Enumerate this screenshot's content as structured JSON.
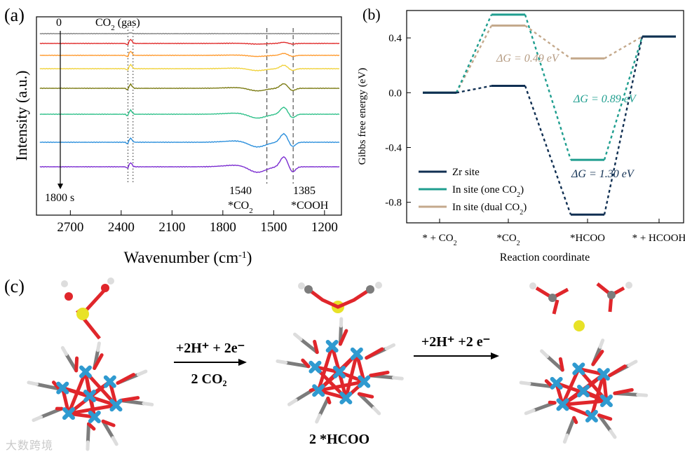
{
  "panel_a": {
    "label": "(a)",
    "xlabel": "Wavenumber (cm",
    "xlabel_sup": "-1",
    "xlabel_end": ")",
    "ylabel": "Intensity (a.u.)",
    "time_start": "0",
    "time_end": "1800 s",
    "gas_label": "CO",
    "gas_sub": "2",
    "gas_suffix": " (gas)",
    "ann_1540": "1540",
    "ann_1540_species": "*CO",
    "ann_1540_sub": "2",
    "ann_1385": "1385",
    "ann_1385_species": "*COOH",
    "colors": [
      "#808080",
      "#e02b2b",
      "#ff9a2e",
      "#f0d23c",
      "#7a7a12",
      "#2ec089",
      "#2b8fdc",
      "#7a2bd0"
    ]
  },
  "panel_b": {
    "label": "(b)",
    "dg_dual": "ΔG = 0.49 eV",
    "dg_one": "ΔG = 0.89 eV",
    "dg_zr": "ΔG = 1.30 eV"
  },
  "panel_c": {
    "label": "(c)",
    "arrow1_top": "+2H⁺ + 2e⁻",
    "arrow1_bottom": "2 CO₂",
    "arrow2_top": "+2H⁺ +2 e⁻",
    "middle_caption": "2 *HCOO"
  },
  "watermark": "大数跨境",
  "chart_data": [
    {
      "type": "line",
      "panel": "a",
      "title": "",
      "xlabel": "Wavenumber (cm-1)",
      "ylabel": "Intensity (a.u.)",
      "x_reversed": true,
      "xlim": [
        2900,
        1100
      ],
      "x_ticks": [
        2700,
        2400,
        2100,
        1800,
        1500,
        1200
      ],
      "time_range_s": [
        0,
        1800
      ],
      "spectra_count": 8,
      "reference_lines_cm-1": [
        2360,
        2330,
        1540,
        1385
      ],
      "grid": false
    },
    {
      "type": "line",
      "panel": "b",
      "title": "",
      "xlabel": "Reaction coordinate",
      "ylabel": "Gibbs free energy (eV)",
      "categories": [
        "* + CO2",
        "*CO2",
        "*HCOO",
        "* + HCOOH"
      ],
      "ylim": [
        -0.95,
        0.6
      ],
      "y_ticks": [
        0.4,
        0.0,
        -0.4,
        -0.8
      ],
      "legend_position": "bottom-left",
      "series": [
        {
          "name": "Zr site",
          "color": "#102f52",
          "values": [
            0.0,
            0.05,
            -0.89,
            0.41
          ]
        },
        {
          "name": "In site (one CO2)",
          "color": "#1f9e8f",
          "values": [
            0.0,
            0.57,
            -0.49,
            0.41
          ]
        },
        {
          "name": "In site (dual CO2)",
          "color": "#c4a98c",
          "values": [
            0.0,
            0.49,
            0.25,
            0.41
          ]
        }
      ],
      "grid": false
    }
  ]
}
